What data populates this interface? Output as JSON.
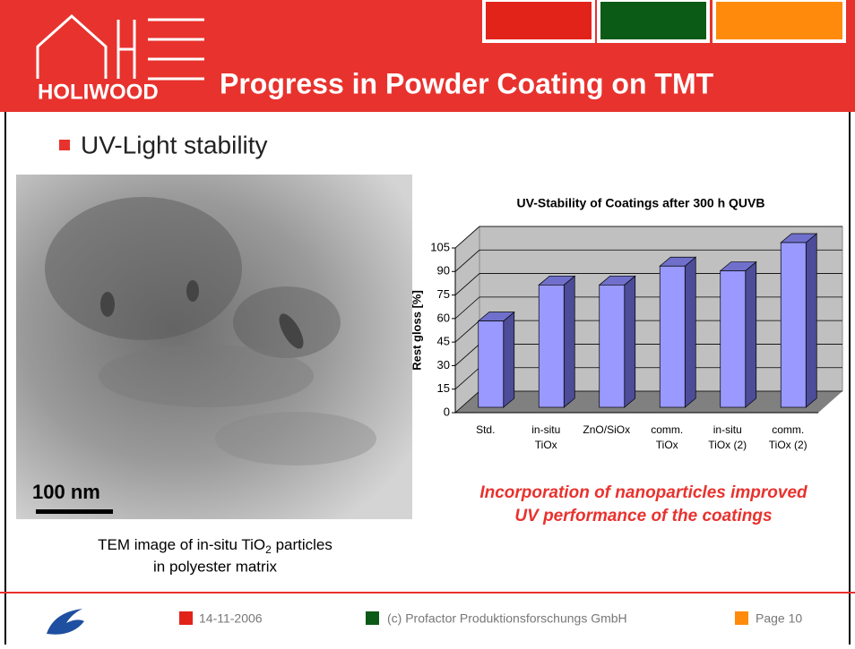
{
  "header": {
    "logo_text": "HOLIWOOD",
    "title": "Progress in Powder Coating on TMT"
  },
  "bullet": "UV-Light stability",
  "image": {
    "scale_bar": "100 nm",
    "caption": {
      "line1_before": "TEM image of in-situ TiO",
      "line1_subscript": "2",
      "line1_after": " particles",
      "line2": "in polyester matrix"
    }
  },
  "chart_data": {
    "type": "bar3d",
    "title": "UV-Stability of Coatings after 300 h QUVB",
    "y_label": "Rest gloss [%]",
    "categories": [
      [
        "Std."
      ],
      [
        "in-situ",
        "TiOx"
      ],
      [
        "ZnO/SiOx"
      ],
      [
        "comm.",
        "TiOx"
      ],
      [
        "in-situ",
        "TiOx (2)"
      ],
      [
        "comm.",
        "TiOx (2)"
      ]
    ],
    "values": [
      55,
      78,
      78,
      90,
      87,
      105
    ],
    "color": "#9999ff",
    "ylim": [
      0,
      105
    ],
    "yticks": [
      0,
      15,
      30,
      45,
      60,
      75,
      90,
      105
    ],
    "grid": true
  },
  "conclusion": [
    "Incorporation of nanoparticles improved",
    "UV performance of the coatings"
  ],
  "footer": {
    "date": "14-11-2006",
    "copyright": "(c) Profactor Produktionsforschungs GmbH",
    "page": "Page 10"
  }
}
